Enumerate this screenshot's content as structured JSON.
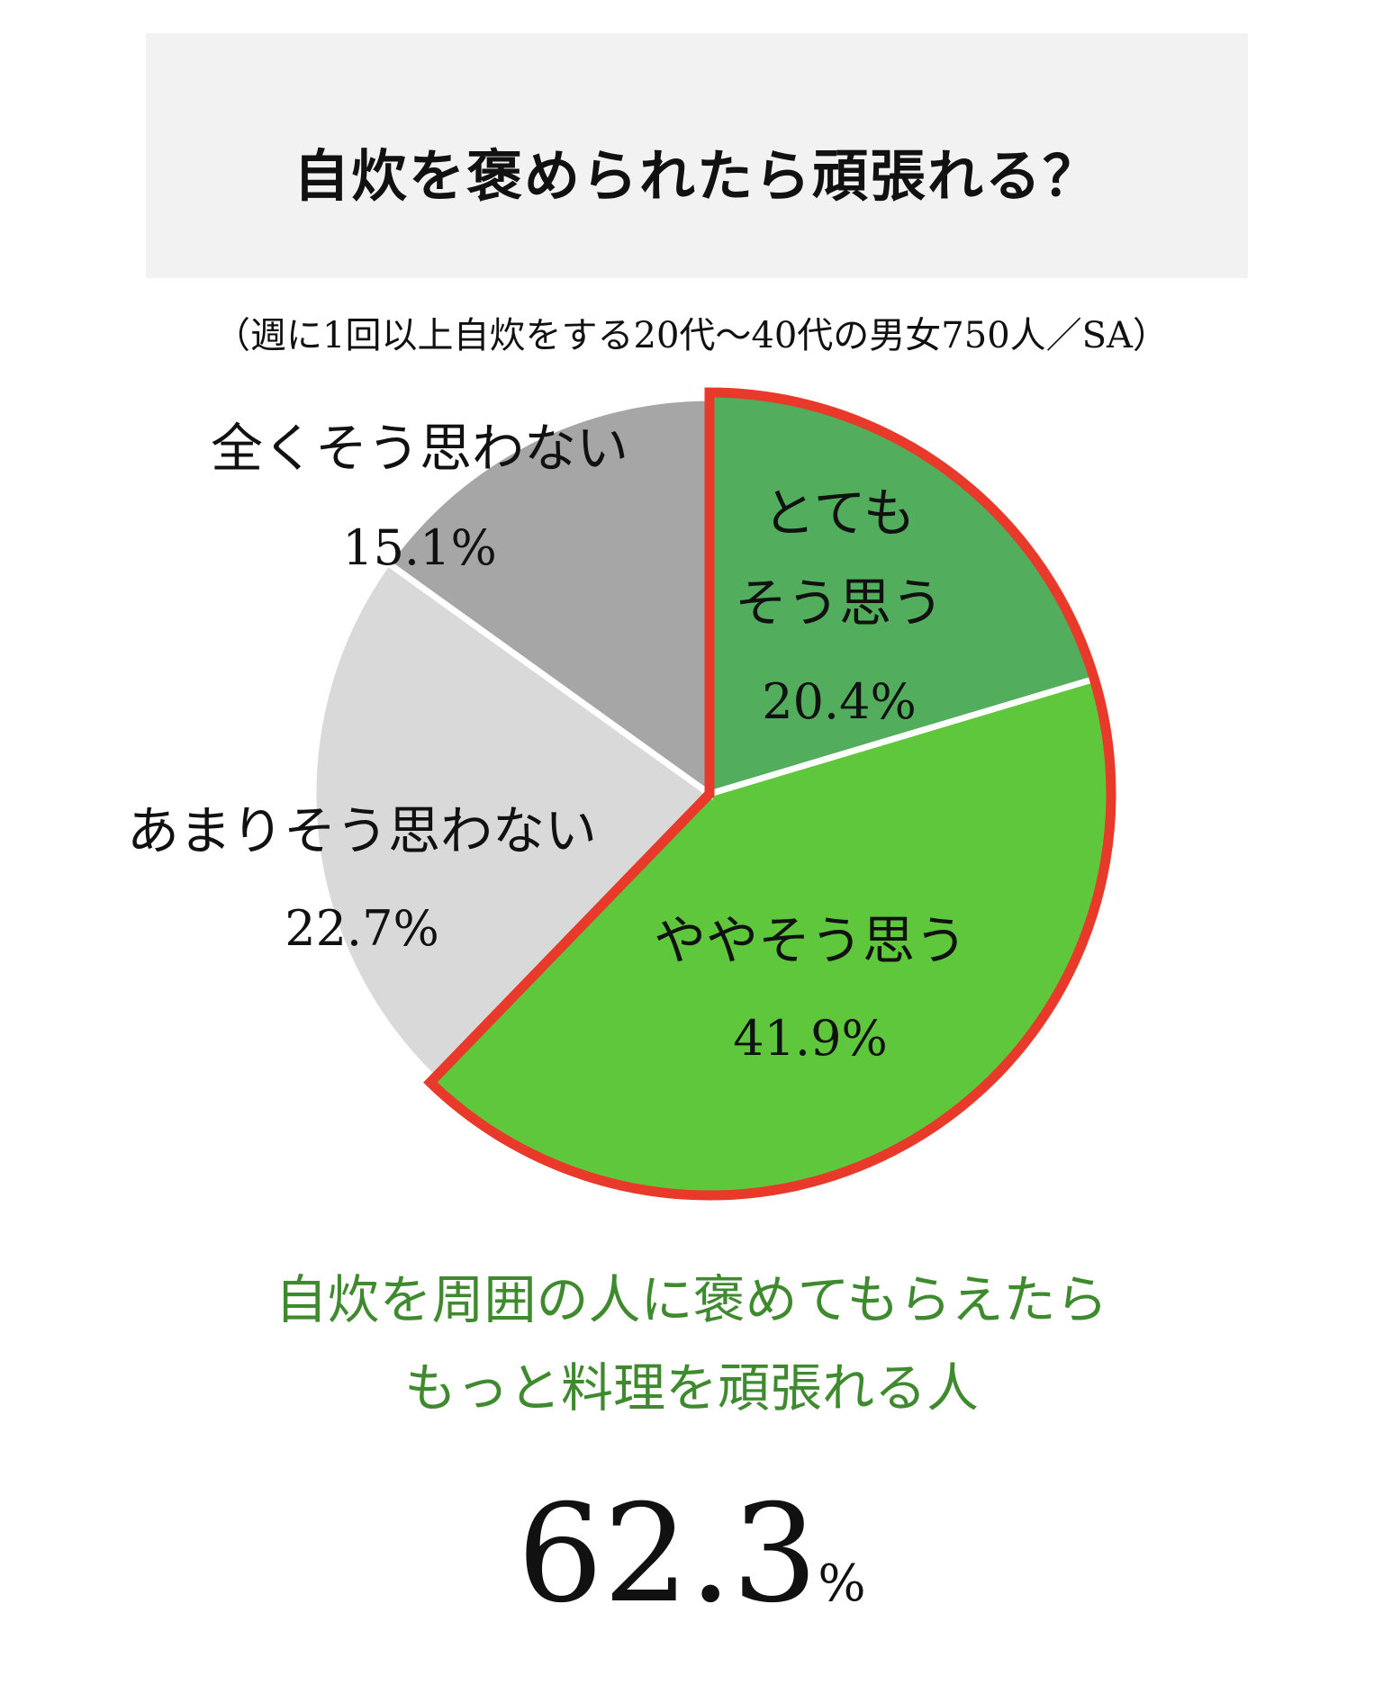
{
  "title": "自炊を褒められたら頑張れる？",
  "subtitle": "（週に1回以上自炊をする20代～40代の男女750人／SA）",
  "chart_data": {
    "type": "pie",
    "title": "自炊を褒められたら頑張れる？",
    "start": "12 o'clock, clockwise",
    "slices": [
      {
        "label_lines": [
          "とても",
          "そう思う"
        ],
        "value": 20.4,
        "value_label": "20.4%",
        "color": "#52ad5d",
        "highlighted": true
      },
      {
        "label_lines": [
          "ややそう思う"
        ],
        "value": 41.9,
        "value_label": "41.9%",
        "color": "#5fc73c",
        "highlighted": true
      },
      {
        "label_lines": [
          "あまりそう思わない"
        ],
        "value": 22.7,
        "value_label": "22.7%",
        "color": "#d9d9d9",
        "highlighted": false
      },
      {
        "label_lines": [
          "全くそう思わない"
        ],
        "value": 15.1,
        "value_label": "15.1%",
        "color": "#a6a6a6",
        "highlighted": false
      }
    ],
    "highlight_color": "#e8392a"
  },
  "highlight": {
    "lines": [
      "自炊を周囲の人に褒めてもらえたら",
      "もっと料理を頑張れる人"
    ],
    "color": "#3f8a2e"
  },
  "total": {
    "value": "62.3",
    "unit": "%"
  }
}
